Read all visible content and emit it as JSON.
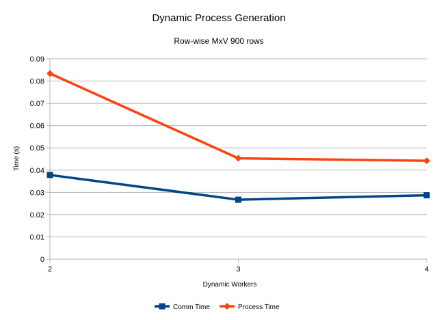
{
  "chart_data": {
    "type": "line",
    "title": "Dynamic Process Generation",
    "subtitle": "Row-wise MxV 900 rows",
    "xlabel": "Dynamic Workers",
    "ylabel": "Time (s)",
    "x": [
      2,
      3,
      4
    ],
    "xlim": [
      2,
      4
    ],
    "ylim": [
      0,
      0.09
    ],
    "yticks": [
      0,
      0.01,
      0.02,
      0.03,
      0.04,
      0.05,
      0.06,
      0.07,
      0.08,
      0.09
    ],
    "grid": "horizontal",
    "legend": "bottom",
    "series": [
      {
        "name": "Comm Time",
        "values": [
          0.0378,
          0.0267,
          0.0287
        ],
        "color": "#004586",
        "marker": "square"
      },
      {
        "name": "Process Time",
        "values": [
          0.0834,
          0.0453,
          0.0442
        ],
        "color": "#ff420e",
        "marker": "diamond"
      }
    ]
  }
}
